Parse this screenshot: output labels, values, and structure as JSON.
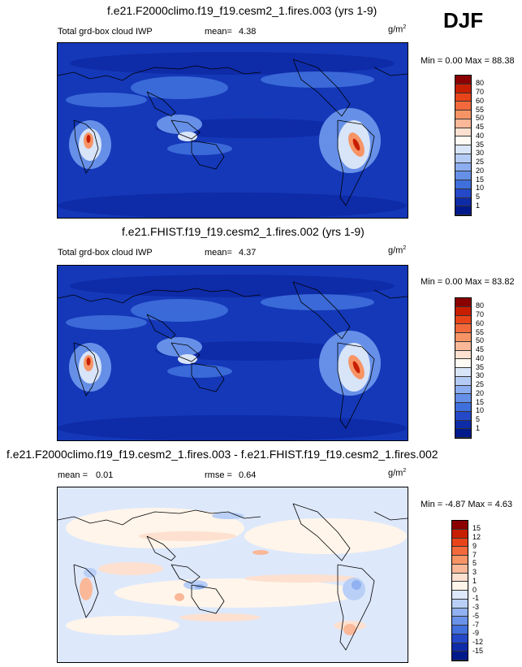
{
  "season": "DJF",
  "panels": [
    {
      "title": "f.e21.F2000climo.f19_f19.cesm2_1.fires.003 (yrs 1-9)",
      "left_label": "Total grd-box cloud IWP",
      "stat1_label": "mean=",
      "stat1_value": "4.38",
      "units": "g/m",
      "units_sup": "2",
      "minmax": "Min =   0.00 Max =  88.38",
      "colorbar_labels": [
        "80",
        "70",
        "60",
        "55",
        "50",
        "45",
        "40",
        "35",
        "30",
        "25",
        "20",
        "15",
        "10",
        "5",
        "1"
      ],
      "colorbar_colors": [
        "#8b0000",
        "#c81e00",
        "#e8441a",
        "#f26a3c",
        "#f79465",
        "#fab898",
        "#fde0cf",
        "#fffaf3",
        "#d8e4f8",
        "#b4cbf5",
        "#8cadf0",
        "#6690e8",
        "#3f6fdc",
        "#2448c8",
        "#0e2ba8",
        "#001a8c"
      ]
    },
    {
      "title": "f.e21.FHIST.f19_f19.cesm2_1.fires.002 (yrs 1-9)",
      "left_label": "Total grd-box cloud IWP",
      "stat1_label": "mean=",
      "stat1_value": "4.37",
      "units": "g/m",
      "units_sup": "2",
      "minmax": "Min =   0.00 Max =  83.82",
      "colorbar_labels": [
        "80",
        "70",
        "60",
        "55",
        "50",
        "45",
        "40",
        "35",
        "30",
        "25",
        "20",
        "15",
        "10",
        "5",
        "1"
      ],
      "colorbar_colors": [
        "#8b0000",
        "#c81e00",
        "#e8441a",
        "#f26a3c",
        "#f79465",
        "#fab898",
        "#fde0cf",
        "#fffaf3",
        "#d8e4f8",
        "#b4cbf5",
        "#8cadf0",
        "#6690e8",
        "#3f6fdc",
        "#2448c8",
        "#0e2ba8",
        "#001a8c"
      ]
    },
    {
      "title": "f.e21.F2000climo.f19_f19.cesm2_1.fires.003 - f.e21.FHIST.f19_f19.cesm2_1.fires.002",
      "stat1_label": "mean =",
      "stat1_value": "0.01",
      "stat2_label": "rmse =",
      "stat2_value": "0.64",
      "units": "g/m",
      "units_sup": "2",
      "minmax": "Min =  -4.87 Max =   4.63",
      "colorbar_labels": [
        "15",
        "12",
        "9",
        "7",
        "5",
        "3",
        "1",
        "0",
        "-1",
        "-3",
        "-5",
        "-7",
        "-9",
        "-12",
        "-15"
      ],
      "colorbar_colors": [
        "#8b0000",
        "#c81e00",
        "#e8441a",
        "#f26a3c",
        "#f79465",
        "#fab898",
        "#fde0cf",
        "#fff5ea",
        "#dde8fb",
        "#b9cff6",
        "#91b1f0",
        "#6a92e8",
        "#4270dc",
        "#2448c8",
        "#0e2ba8",
        "#001a8c"
      ]
    }
  ]
}
